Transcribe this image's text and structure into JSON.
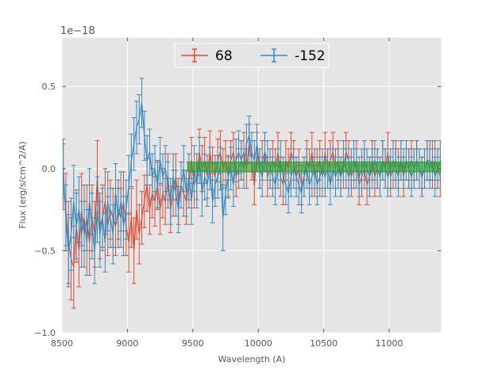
{
  "chart_data": {
    "type": "line",
    "title": "",
    "xlabel": "Wavelength (A)",
    "ylabel": "Flux (erg/s/cm^2/A)",
    "offset_text": "1e−18",
    "xlim": [
      8500,
      11400
    ],
    "ylim": [
      -1.0,
      0.8
    ],
    "xticks": [
      8500,
      9000,
      9500,
      10000,
      10500,
      11000
    ],
    "xtick_labels": [
      "8500",
      "9000",
      "9500",
      "10000",
      "10500",
      "11000"
    ],
    "yticks": [
      -1.0,
      -0.5,
      0.0,
      0.5
    ],
    "ytick_labels": [
      "−1.0",
      "−0.5",
      "0.0",
      "0.5"
    ],
    "grid": true,
    "legend_position": "upper center",
    "colors": {
      "background": "#e5e5e5",
      "grid": "#ffffff",
      "band": "#2ca02c"
    },
    "band": {
      "x_start": 9460,
      "x_end": 11400,
      "y_low": -0.02,
      "y_high": 0.04,
      "label": ""
    },
    "x_start": 8510,
    "x_step": 20,
    "series": [
      {
        "name": "68",
        "color": "#e24a33",
        "values": [
          -0.05,
          -0.25,
          -0.45,
          -0.55,
          -0.6,
          -0.35,
          -0.5,
          -0.25,
          -0.4,
          -0.3,
          -0.45,
          -0.3,
          -0.4,
          -0.05,
          -0.35,
          -0.3,
          -0.2,
          -0.35,
          -0.25,
          -0.3,
          -0.35,
          -0.25,
          -0.3,
          -0.2,
          -0.35,
          -0.45,
          -0.3,
          -0.5,
          -0.25,
          -0.4,
          -0.3,
          -0.2,
          -0.1,
          -0.25,
          -0.15,
          -0.2,
          -0.1,
          -0.25,
          -0.15,
          -0.2,
          -0.05,
          -0.25,
          -0.15,
          -0.05,
          -0.2,
          -0.1,
          -0.15,
          -0.2,
          -0.1,
          0.05,
          -0.1,
          -0.05,
          0.1,
          0.0,
          0.05,
          -0.05,
          0.1,
          0.0,
          -0.05,
          0.05,
          0.1,
          0.0,
          0.05,
          -0.05,
          0.05,
          0.1,
          -0.05,
          0.0,
          0.05,
          0.1,
          0.0,
          0.15,
          0.05,
          -0.1,
          0.1,
          0.0,
          0.05,
          0.1,
          -0.05,
          0.0,
          0.05,
          0.0,
          0.1,
          -0.05,
          -0.1,
          0.05,
          0.0,
          0.1,
          0.05,
          -0.05,
          0.0,
          -0.1,
          -0.05,
          0.05,
          0.0,
          0.1,
          -0.05,
          0.0,
          0.05,
          -0.05,
          0.1,
          0.0,
          0.05,
          0.1,
          0.0,
          0.05,
          -0.05,
          0.0,
          0.1,
          0.05,
          -0.05,
          0.0,
          0.05,
          -0.1,
          -0.05,
          0.0,
          -0.1,
          -0.05,
          0.05,
          -0.05,
          0.0,
          -0.05,
          0.05,
          0.0,
          0.1,
          -0.05,
          0.0,
          0.05,
          0.0,
          0.05,
          -0.05,
          0.05,
          0.0,
          0.05,
          0.0,
          0.05,
          0.0,
          -0.05,
          0.0,
          0.05,
          0.05,
          0.0,
          0.05,
          0.0,
          -0.05
        ],
        "errors": [
          0.2,
          0.22,
          0.25,
          0.25,
          0.25,
          0.22,
          0.22,
          0.22,
          0.2,
          0.2,
          0.2,
          0.2,
          0.2,
          0.22,
          0.2,
          0.2,
          0.2,
          0.18,
          0.18,
          0.18,
          0.18,
          0.18,
          0.18,
          0.18,
          0.18,
          0.18,
          0.18,
          0.2,
          0.18,
          0.18,
          0.16,
          0.16,
          0.16,
          0.15,
          0.15,
          0.15,
          0.15,
          0.15,
          0.15,
          0.14,
          0.14,
          0.14,
          0.14,
          0.14,
          0.14,
          0.14,
          0.14,
          0.14,
          0.14,
          0.14,
          0.14,
          0.14,
          0.14,
          0.14,
          0.14,
          0.13,
          0.13,
          0.13,
          0.13,
          0.13,
          0.13,
          0.12,
          0.12,
          0.12,
          0.12,
          0.12,
          0.12,
          0.12,
          0.12,
          0.12,
          0.12,
          0.12,
          0.12,
          0.12,
          0.12,
          0.12,
          0.12,
          0.12,
          0.12,
          0.12,
          0.12,
          0.12,
          0.12,
          0.12,
          0.12,
          0.12,
          0.12,
          0.12,
          0.12,
          0.12,
          0.12,
          0.12,
          0.12,
          0.12,
          0.12,
          0.12,
          0.12,
          0.12,
          0.12,
          0.12,
          0.12,
          0.12,
          0.12,
          0.12,
          0.12,
          0.12,
          0.12,
          0.12,
          0.12,
          0.12,
          0.12,
          0.12,
          0.12,
          0.12,
          0.12,
          0.12,
          0.12,
          0.12,
          0.12,
          0.12,
          0.12,
          0.12,
          0.12,
          0.12,
          0.12,
          0.12,
          0.12,
          0.12,
          0.12,
          0.12,
          0.12,
          0.12,
          0.12,
          0.12,
          0.12,
          0.12,
          0.12,
          0.12,
          0.12,
          0.12,
          0.12,
          0.12,
          0.12,
          0.12,
          0.12
        ]
      },
      {
        "name": "-152",
        "color": "#348abd",
        "values": [
          0.0,
          -0.3,
          -0.5,
          -0.4,
          -0.2,
          -0.35,
          -0.25,
          -0.4,
          -0.3,
          -0.45,
          -0.2,
          -0.35,
          -0.5,
          -0.25,
          -0.4,
          -0.3,
          -0.45,
          -0.2,
          -0.3,
          -0.4,
          -0.15,
          -0.3,
          -0.2,
          -0.35,
          -0.25,
          -0.1,
          0.05,
          0.15,
          0.25,
          0.3,
          0.4,
          0.2,
          0.05,
          0.1,
          -0.05,
          0.0,
          -0.1,
          0.05,
          -0.05,
          0.0,
          -0.1,
          -0.2,
          -0.05,
          -0.15,
          -0.25,
          -0.1,
          0.0,
          -0.15,
          -0.05,
          -0.2,
          0.0,
          -0.1,
          0.05,
          -0.15,
          -0.05,
          -0.1,
          0.0,
          -0.2,
          -0.1,
          -0.05,
          0.0,
          -0.3,
          -0.15,
          -0.05,
          0.0,
          -0.1,
          0.05,
          0.1,
          0.05,
          0.0,
          0.15,
          0.2,
          0.1,
          0.05,
          0.15,
          0.0,
          -0.05,
          0.1,
          0.05,
          0.0,
          -0.05,
          -0.1,
          0.0,
          0.05,
          -0.05,
          -0.1,
          -0.15,
          -0.05,
          0.0,
          -0.05,
          -0.1,
          -0.15,
          -0.05,
          0.0,
          -0.1,
          -0.05,
          0.0,
          -0.1,
          -0.05,
          0.0,
          -0.05,
          0.0,
          -0.1,
          0.0,
          -0.05,
          0.0,
          -0.05,
          0.05,
          0.0,
          -0.05,
          0.0,
          0.05,
          0.0,
          -0.05,
          0.0,
          0.05,
          0.0,
          -0.05,
          0.0,
          0.05,
          0.0,
          -0.05,
          0.05,
          0.0,
          -0.05,
          0.0,
          0.05,
          0.0,
          -0.05,
          0.05,
          0.0,
          0.05,
          0.0,
          -0.05,
          0.0,
          0.05,
          0.0,
          -0.05,
          0.0,
          0.05,
          0.0,
          0.05,
          -0.05,
          0.0,
          0.05
        ],
        "errors": [
          0.18,
          0.2,
          0.22,
          0.22,
          0.22,
          0.2,
          0.2,
          0.2,
          0.2,
          0.2,
          0.2,
          0.2,
          0.2,
          0.2,
          0.2,
          0.18,
          0.18,
          0.18,
          0.18,
          0.18,
          0.18,
          0.18,
          0.18,
          0.18,
          0.18,
          0.18,
          0.16,
          0.16,
          0.16,
          0.15,
          0.15,
          0.15,
          0.15,
          0.14,
          0.14,
          0.14,
          0.14,
          0.14,
          0.14,
          0.14,
          0.14,
          0.14,
          0.14,
          0.14,
          0.14,
          0.14,
          0.14,
          0.14,
          0.14,
          0.14,
          0.14,
          0.14,
          0.14,
          0.14,
          0.14,
          0.13,
          0.13,
          0.13,
          0.13,
          0.13,
          0.13,
          0.2,
          0.13,
          0.13,
          0.13,
          0.13,
          0.13,
          0.13,
          0.12,
          0.12,
          0.12,
          0.12,
          0.12,
          0.12,
          0.12,
          0.12,
          0.12,
          0.12,
          0.12,
          0.12,
          0.12,
          0.12,
          0.12,
          0.12,
          0.12,
          0.12,
          0.12,
          0.12,
          0.12,
          0.12,
          0.12,
          0.12,
          0.12,
          0.12,
          0.12,
          0.12,
          0.12,
          0.12,
          0.12,
          0.12,
          0.12,
          0.12,
          0.12,
          0.12,
          0.12,
          0.12,
          0.12,
          0.12,
          0.12,
          0.12,
          0.12,
          0.12,
          0.12,
          0.12,
          0.12,
          0.12,
          0.12,
          0.12,
          0.12,
          0.12,
          0.12,
          0.12,
          0.12,
          0.12,
          0.12,
          0.12,
          0.12,
          0.12,
          0.12,
          0.12,
          0.12,
          0.12,
          0.12,
          0.12,
          0.12,
          0.12,
          0.12,
          0.12,
          0.12,
          0.12,
          0.12,
          0.12,
          0.12,
          0.12,
          0.12
        ]
      }
    ]
  }
}
